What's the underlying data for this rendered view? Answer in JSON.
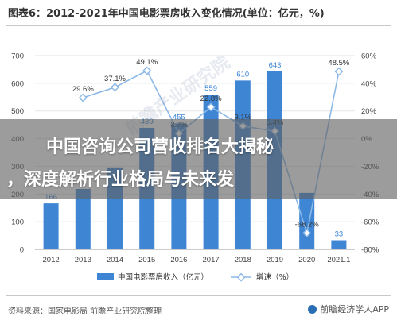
{
  "title": "图表6：2012-2021年中国电影票房收入变化情况(单位：亿元，%)",
  "watermark": "前瞻产业研究院",
  "overlay": {
    "line1": "中国咨询公司营收排名大揭秘",
    "line2": "，深度解析行业格局与未来发"
  },
  "footer": {
    "source": "资料来源：国家电影局 前瞻产业研究院整理",
    "brand": "前瞻经济学人APP"
  },
  "colors": {
    "bar": "#3e86d4",
    "line": "#8cb8e6",
    "accent": "#2a6fb3"
  },
  "chart_data": {
    "type": "bar",
    "categories": [
      "2012",
      "2013",
      "2014",
      "2015",
      "2016",
      "2017",
      "2018",
      "2019",
      "2020",
      "2021.1"
    ],
    "series": [
      {
        "name": "中国电影票房收入（亿元）",
        "type": "bar",
        "values": [
          166,
          218,
          296,
          439,
          455,
          559,
          610,
          643,
          204,
          33
        ],
        "labels": [
          "166",
          "",
          "",
          "439",
          "455",
          "559",
          "610",
          "643",
          "",
          "33"
        ]
      },
      {
        "name": "增速（%）",
        "type": "line",
        "values": [
          null,
          29.6,
          37.1,
          49.1,
          3.7,
          22.8,
          9.1,
          5.4,
          -68.2,
          48.5
        ],
        "labels": [
          "",
          "29.6%",
          "37.1%",
          "49.1%",
          "3.7%",
          "22.8%",
          "9.1%",
          "5.4%",
          "-68.2%",
          "48.5%"
        ]
      }
    ],
    "ylim": [
      0,
      700
    ],
    "yticks": [
      "0",
      "100",
      "200",
      "300",
      "400",
      "500",
      "600",
      "700"
    ],
    "y2lim": [
      -80,
      60
    ],
    "y2ticks": [
      "-80%",
      "-60%",
      "-40%",
      "-20%",
      "0%",
      "20%",
      "40%",
      "60%"
    ],
    "grid": true,
    "legend": "bottom"
  }
}
